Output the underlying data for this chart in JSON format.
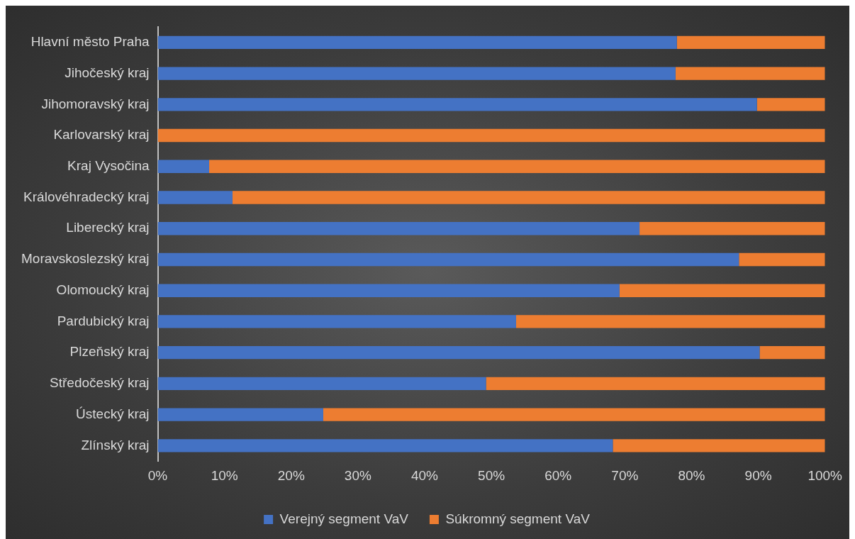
{
  "chart_data": {
    "type": "bar",
    "orientation": "horizontal",
    "stacked": true,
    "categories": [
      "Hlavní město Praha",
      "Jihočeský kraj",
      "Jihomoravský kraj",
      "Karlovarský kraj",
      "Kraj Vysočina",
      "Královéhradecký kraj",
      "Liberecký kraj",
      "Moravskoslezský kraj",
      "Olomoucký kraj",
      "Pardubický kraj",
      "Plzeňský kraj",
      "Středočeský kraj",
      "Ústecký kraj",
      "Zlínský kraj"
    ],
    "series": [
      {
        "name": "Verejný segment VaV",
        "color": "#4472c4",
        "values": [
          77.8,
          77.6,
          89.8,
          0,
          7.7,
          11.2,
          72.2,
          87.1,
          69.2,
          53.7,
          90.2,
          49.2,
          24.8,
          68.2
        ]
      },
      {
        "name": "Súkromný segment VaV",
        "color": "#ed7d31",
        "values": [
          22.2,
          22.4,
          10.2,
          100,
          92.3,
          88.8,
          27.8,
          12.9,
          30.8,
          46.3,
          9.8,
          50.8,
          75.2,
          31.8
        ]
      }
    ],
    "xlim": [
      0,
      100
    ],
    "xticks": [
      {
        "value": 0,
        "label": "0%"
      },
      {
        "value": 10,
        "label": "10%"
      },
      {
        "value": 20,
        "label": "20%"
      },
      {
        "value": 30,
        "label": "30%"
      },
      {
        "value": 40,
        "label": "40%"
      },
      {
        "value": 50,
        "label": "50%"
      },
      {
        "value": 60,
        "label": "60%"
      },
      {
        "value": 70,
        "label": "70%"
      },
      {
        "value": 80,
        "label": "80%"
      },
      {
        "value": 90,
        "label": "90%"
      },
      {
        "value": 100,
        "label": "100%"
      }
    ],
    "grid": false,
    "legend": "bottom"
  }
}
